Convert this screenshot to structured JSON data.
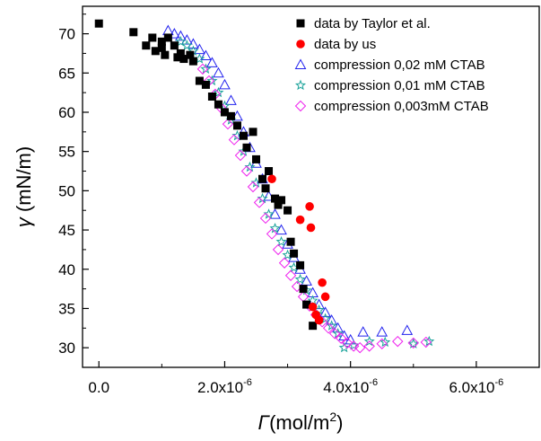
{
  "chart_data": {
    "type": "scatter",
    "xlabel": "Γ(mol/m2)",
    "ylabel": "γ (mN/m)",
    "xlabel_parts": {
      "symbol": "Γ",
      "unit": "(mol/m",
      "unit_sup": "2",
      "close": ")"
    },
    "ylabel_parts": {
      "symbol": "γ",
      "unit": " (mN/m)"
    },
    "xlim": [
      -2.6e-07,
      7e-06
    ],
    "ylim": [
      27.5,
      73.5
    ],
    "xticks": [
      {
        "value": 0.0,
        "label": "0.0",
        "exp": ""
      },
      {
        "value": 2e-06,
        "label": "2.0x10",
        "exp": "-6"
      },
      {
        "value": 4e-06,
        "label": "4.0x10",
        "exp": "-6"
      },
      {
        "value": 6e-06,
        "label": "6.0x10",
        "exp": "-6"
      }
    ],
    "yticks": [
      {
        "value": 30,
        "label": "30"
      },
      {
        "value": 35,
        "label": "35"
      },
      {
        "value": 40,
        "label": "40"
      },
      {
        "value": 45,
        "label": "45"
      },
      {
        "value": 50,
        "label": "50"
      },
      {
        "value": 55,
        "label": "55"
      },
      {
        "value": 60,
        "label": "60"
      },
      {
        "value": 65,
        "label": "65"
      },
      {
        "value": 70,
        "label": "70"
      }
    ],
    "grid": false,
    "legend_position": "top-right",
    "series": [
      {
        "name": "data by Taylor et al.",
        "marker": "square",
        "color": "#000000",
        "x": [
          0.0,
          5.5e-07,
          7.5e-07,
          8.5e-07,
          9e-07,
          1e-06,
          1e-06,
          1.05e-06,
          1.1e-06,
          1.2e-06,
          1.25e-06,
          1.3e-06,
          1.35e-06,
          1.45e-06,
          1.5e-06,
          1.6e-06,
          1.7e-06,
          1.8e-06,
          1.9e-06,
          2e-06,
          2.1e-06,
          2.2e-06,
          2.3e-06,
          2.35e-06,
          2.45e-06,
          2.5e-06,
          2.6e-06,
          2.65e-06,
          2.7e-06,
          2.8e-06,
          2.85e-06,
          2.9e-06,
          3e-06,
          3.05e-06,
          3.1e-06,
          3.2e-06,
          3.25e-06,
          3.3e-06,
          3.4e-06
        ],
        "y": [
          71.3,
          70.2,
          68.5,
          69.5,
          67.8,
          69.0,
          68.2,
          67.3,
          69.5,
          68.5,
          67.0,
          67.5,
          66.8,
          67.3,
          66.5,
          64.0,
          63.5,
          62.0,
          61.0,
          60.0,
          59.5,
          58.3,
          57.0,
          55.5,
          57.5,
          54.0,
          51.5,
          50.3,
          52.5,
          49.0,
          48.2,
          48.8,
          47.5,
          43.5,
          42.0,
          40.5,
          37.5,
          35.5,
          32.8
        ]
      },
      {
        "name": "data by us",
        "marker": "circle",
        "color": "#ff0000",
        "x": [
          2.75e-06,
          3.2e-06,
          3.35e-06,
          3.37e-06,
          3.4e-06,
          3.45e-06,
          3.5e-06,
          3.55e-06,
          3.6e-06
        ],
        "y": [
          51.5,
          46.3,
          48.0,
          45.3,
          35.2,
          34.2,
          33.5,
          38.3,
          36.5
        ]
      },
      {
        "name": "compression 0,02 mM CTAB",
        "marker": "triangle",
        "color": "#2222ee",
        "x": [
          1.1e-06,
          1.2e-06,
          1.3e-06,
          1.4e-06,
          1.5e-06,
          1.6e-06,
          1.7e-06,
          1.8e-06,
          1.9e-06,
          2e-06,
          2.1e-06,
          2.2e-06,
          2.3e-06,
          2.4e-06,
          2.5e-06,
          2.6e-06,
          2.7e-06,
          2.8e-06,
          2.9e-06,
          3e-06,
          3.1e-06,
          3.2e-06,
          3.3e-06,
          3.4e-06,
          3.5e-06,
          3.6e-06,
          3.7e-06,
          3.8e-06,
          3.9e-06,
          4e-06,
          4.2e-06,
          4.5e-06,
          4.9e-06
        ],
        "y": [
          70.4,
          70.0,
          69.7,
          69.2,
          68.7,
          68.0,
          67.2,
          66.3,
          65.0,
          63.5,
          61.5,
          59.5,
          57.5,
          55.5,
          53.5,
          51.5,
          49.3,
          47.0,
          45.0,
          43.2,
          41.5,
          40.0,
          38.5,
          37.0,
          35.5,
          34.5,
          33.5,
          32.5,
          31.5,
          31.0,
          32.0,
          32.0,
          32.2
        ]
      },
      {
        "name": "compression 0,01 mM CTAB",
        "marker": "star",
        "color": "#1aa39a",
        "x": [
          1.3e-06,
          1.4e-06,
          1.5e-06,
          1.6e-06,
          1.7e-06,
          1.8e-06,
          1.9e-06,
          2e-06,
          2.1e-06,
          2.2e-06,
          2.3e-06,
          2.4e-06,
          2.5e-06,
          2.6e-06,
          2.7e-06,
          2.8e-06,
          2.9e-06,
          3e-06,
          3.1e-06,
          3.2e-06,
          3.3e-06,
          3.4e-06,
          3.5e-06,
          3.6e-06,
          3.7e-06,
          3.8e-06,
          3.9e-06,
          4.05e-06,
          4.3e-06,
          4.55e-06,
          5e-06,
          5.25e-06
        ],
        "y": [
          69.0,
          68.5,
          67.8,
          66.8,
          65.5,
          64.0,
          62.5,
          60.8,
          59.0,
          57.0,
          55.0,
          53.0,
          51.0,
          49.0,
          47.0,
          45.2,
          43.5,
          41.8,
          40.2,
          38.7,
          37.3,
          36.0,
          34.8,
          33.7,
          32.8,
          31.8,
          30.0,
          30.3,
          30.8,
          30.7,
          30.5,
          30.8
        ]
      },
      {
        "name": "compression 0,003mM CTAB",
        "marker": "diamond",
        "color": "#ee22ee",
        "x": [
          1.65e-06,
          1.75e-06,
          1.85e-06,
          1.95e-06,
          2.05e-06,
          2.15e-06,
          2.25e-06,
          2.35e-06,
          2.45e-06,
          2.55e-06,
          2.65e-06,
          2.75e-06,
          2.85e-06,
          2.95e-06,
          3.05e-06,
          3.15e-06,
          3.25e-06,
          3.35e-06,
          3.45e-06,
          3.55e-06,
          3.65e-06,
          3.75e-06,
          3.85e-06,
          3.95e-06,
          4.05e-06,
          4.15e-06,
          4.3e-06,
          4.5e-06,
          4.75e-06,
          5e-06,
          5.2e-06
        ],
        "y": [
          65.5,
          64.0,
          62.3,
          60.5,
          58.5,
          56.5,
          54.5,
          52.5,
          50.5,
          48.5,
          46.5,
          44.5,
          42.5,
          40.8,
          39.2,
          37.8,
          36.5,
          35.3,
          34.2,
          33.3,
          32.5,
          31.8,
          31.2,
          30.6,
          30.2,
          30.0,
          30.2,
          30.5,
          30.8,
          30.6,
          30.7
        ]
      }
    ]
  }
}
